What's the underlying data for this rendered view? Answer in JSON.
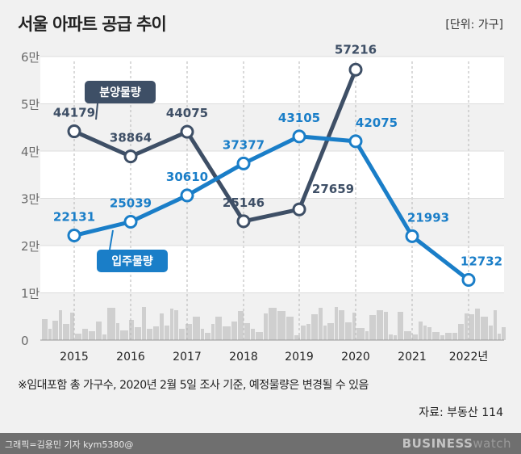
{
  "header": {
    "title": "서울 아파트 공급 추이",
    "unit": "[단위: 가구]"
  },
  "note": "※임대포함 총 가구수, 2020년 2월 5일 조사 기준, 예정물량은 변경될 수 있음",
  "source": "자료: 부동산 114",
  "footer": {
    "credit": "그래픽=김용민 기자 kym5380@",
    "brand_bold": "BUSINESS",
    "brand_light": "watch"
  },
  "chart_data": {
    "type": "line",
    "categories": [
      "2015",
      "2016",
      "2017",
      "2018",
      "2019",
      "2020",
      "2021",
      "2022년"
    ],
    "ylim": [
      0,
      60000
    ],
    "y_ticks": [
      {
        "value": 0,
        "label": "0"
      },
      {
        "value": 10000,
        "label": "1만"
      },
      {
        "value": 20000,
        "label": "2만"
      },
      {
        "value": 30000,
        "label": "3만"
      },
      {
        "value": 40000,
        "label": "4만"
      },
      {
        "value": 50000,
        "label": "5만"
      },
      {
        "value": 60000,
        "label": "6만"
      }
    ],
    "grid": true,
    "series": [
      {
        "name": "분양물량",
        "color": "#3e4f66",
        "values": [
          44179,
          38864,
          44075,
          25146,
          27659,
          57216,
          null,
          null
        ],
        "labels": [
          "44179",
          "38864",
          "44075",
          "25146",
          "27659",
          "57216",
          "",
          ""
        ]
      },
      {
        "name": "입주물량",
        "color": "#1a7ec8",
        "values": [
          22131,
          25039,
          30610,
          37377,
          43105,
          42075,
          21993,
          12732
        ],
        "labels": [
          "22131",
          "25039",
          "30610",
          "37377",
          "43105",
          "42075",
          "21993",
          "12732"
        ]
      }
    ]
  }
}
